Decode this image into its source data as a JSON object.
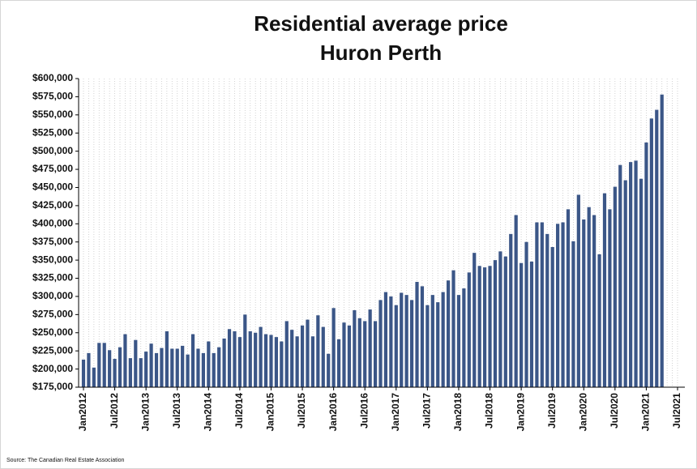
{
  "chart_data": {
    "type": "bar",
    "title": "Residential average price",
    "subtitle": "Huron Perth",
    "source": "Source: The Canadian Real Estate Association",
    "color": "#3b5687",
    "grid": true,
    "categories": [
      "Jan2012",
      null,
      null,
      null,
      null,
      null,
      "Jul2012",
      null,
      null,
      null,
      null,
      null,
      "Jan2013",
      null,
      null,
      null,
      null,
      null,
      "Jul2013",
      null,
      null,
      null,
      null,
      null,
      "Jan2014",
      null,
      null,
      null,
      null,
      null,
      "Jul2014",
      null,
      null,
      null,
      null,
      null,
      "Jan2015",
      null,
      null,
      null,
      null,
      null,
      "Jul2015",
      null,
      null,
      null,
      null,
      null,
      "Jan2016",
      null,
      null,
      null,
      null,
      null,
      "Jul2016",
      null,
      null,
      null,
      null,
      null,
      "Jan2017",
      null,
      null,
      null,
      null,
      null,
      "Jul2017",
      null,
      null,
      null,
      null,
      null,
      "Jan2018",
      null,
      null,
      null,
      null,
      null,
      "Jul2018",
      null,
      null,
      null,
      null,
      null,
      "Jan2019",
      null,
      null,
      null,
      null,
      null,
      "Jul2019",
      null,
      null,
      null,
      null,
      null,
      "Jan2020",
      null,
      null,
      null,
      null,
      null,
      "Jul2020",
      null,
      null,
      null,
      null,
      null,
      "Jan2021",
      null,
      null,
      null,
      null,
      null,
      "Jul2021"
    ],
    "values": [
      213000,
      222000,
      202000,
      236000,
      236000,
      226000,
      214000,
      230000,
      248000,
      215000,
      240000,
      215000,
      224000,
      235000,
      222000,
      229000,
      252000,
      228000,
      228000,
      232000,
      220000,
      248000,
      228000,
      222000,
      238000,
      222000,
      230000,
      242000,
      255000,
      252000,
      244000,
      275000,
      252000,
      250000,
      258000,
      248000,
      247000,
      244000,
      238000,
      266000,
      254000,
      245000,
      260000,
      268000,
      245000,
      274000,
      258000,
      221000,
      284000,
      241000,
      264000,
      260000,
      281000,
      270000,
      266000,
      282000,
      266000,
      295000,
      306000,
      300000,
      288000,
      305000,
      302000,
      295000,
      320000,
      314000,
      288000,
      302000,
      292000,
      306000,
      322000,
      336000,
      302000,
      311000,
      333000,
      360000,
      342000,
      340000,
      342000,
      350000,
      362000,
      355000,
      386000,
      412000,
      346000,
      375000,
      348000,
      402000,
      402000,
      386000,
      368000,
      400000,
      402000,
      420000,
      376000,
      440000,
      406000,
      423000,
      412000,
      358000,
      442000,
      420000,
      451000,
      481000,
      460000,
      485000,
      487000,
      462000,
      512000,
      545000,
      557000,
      578000,
      null,
      null,
      null
    ],
    "ylim": [
      175000,
      600000
    ],
    "yticks": [
      {
        "value": 175000,
        "label": "$175,000"
      },
      {
        "value": 200000,
        "label": "$200,000"
      },
      {
        "value": 225000,
        "label": "$225,000"
      },
      {
        "value": 250000,
        "label": "$250,000"
      },
      {
        "value": 275000,
        "label": "$275,000"
      },
      {
        "value": 300000,
        "label": "$300,000"
      },
      {
        "value": 325000,
        "label": "$325,000"
      },
      {
        "value": 350000,
        "label": "$350,000"
      },
      {
        "value": 375000,
        "label": "$375,000"
      },
      {
        "value": 400000,
        "label": "$400,000"
      },
      {
        "value": 425000,
        "label": "$425,000"
      },
      {
        "value": 450000,
        "label": "$450,000"
      },
      {
        "value": 475000,
        "label": "$475,000"
      },
      {
        "value": 500000,
        "label": "$500,000"
      },
      {
        "value": 525000,
        "label": "$525,000"
      },
      {
        "value": 550000,
        "label": "$550,000"
      },
      {
        "value": 575000,
        "label": "$575,000"
      },
      {
        "value": 600000,
        "label": "$600,000"
      }
    ]
  }
}
